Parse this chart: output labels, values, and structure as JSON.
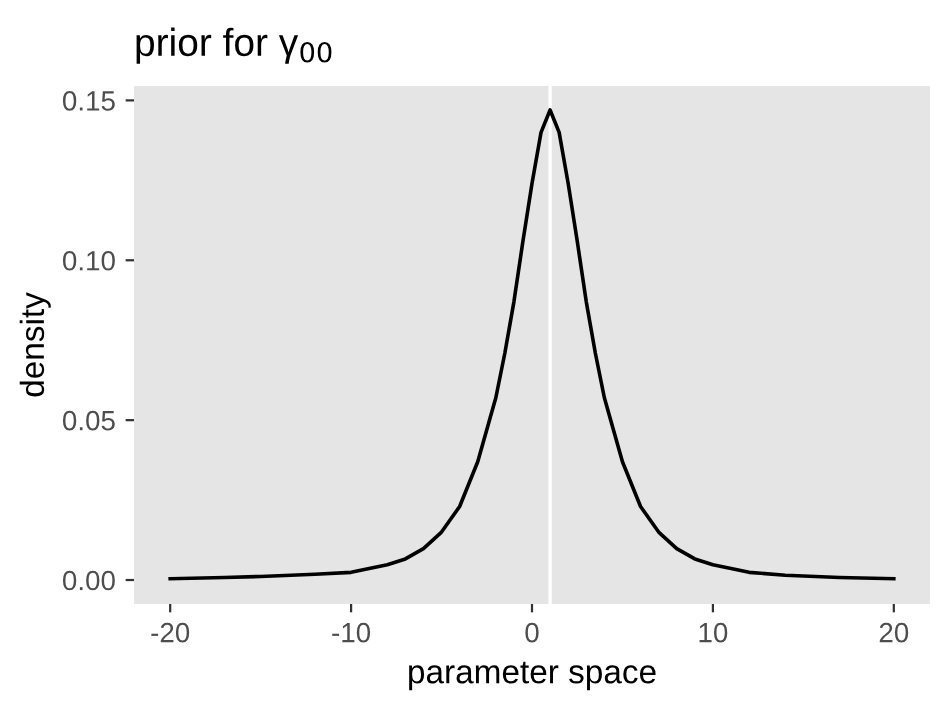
{
  "chart_data": {
    "type": "line",
    "title": "prior for γ$_{00}$",
    "xlabel": "parameter space",
    "ylabel": "density",
    "x": [
      -20,
      -17,
      -15,
      -12,
      -10,
      -8,
      -7,
      -6,
      -5,
      -4,
      -3,
      -2,
      -1.5,
      -1,
      -0.5,
      0,
      0.5,
      1,
      1.5,
      2,
      2.5,
      3,
      3.5,
      4,
      5,
      6,
      7,
      8,
      9,
      10,
      12,
      14,
      17,
      20
    ],
    "series": [
      {
        "color": "#000000",
        "values": [
          0.0004,
          0.0008,
          0.0011,
          0.0018,
          0.0024,
          0.0048,
          0.0066,
          0.0098,
          0.015,
          0.023,
          0.037,
          0.057,
          0.071,
          0.087,
          0.106,
          0.124,
          0.14,
          0.147,
          0.14,
          0.124,
          0.106,
          0.087,
          0.071,
          0.057,
          0.037,
          0.023,
          0.015,
          0.0098,
          0.0066,
          0.0048,
          0.0024,
          0.0015,
          0.0008,
          0.0004
        ]
      }
    ],
    "xlim": [
      -22,
      22
    ],
    "ylim": [
      -0.0075,
      0.1545
    ],
    "xticks": [
      {
        "value": -20,
        "label": "-20"
      },
      {
        "value": -10,
        "label": "-10"
      },
      0,
      10,
      20
    ],
    "yticks": [
      {
        "value": 0,
        "label": "0.00"
      },
      0.05,
      {
        "value": 0.1,
        "label": "0.10"
      },
      0.15
    ],
    "ref_lines": [
      {
        "axis": "x",
        "value": 1,
        "color": "#ffffff"
      }
    ],
    "grid": false,
    "legend": false,
    "marker": "none",
    "line_style": "solid"
  }
}
